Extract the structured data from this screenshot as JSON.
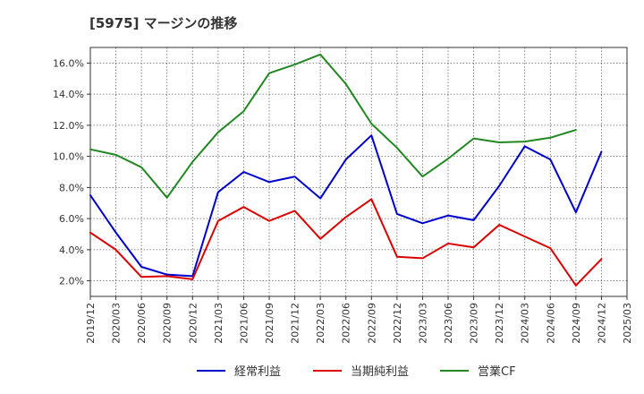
{
  "chart_data": {
    "type": "line",
    "title": "[5975]  マージンの推移",
    "xlabel": "",
    "ylabel": "",
    "x": [
      "2019/12",
      "2020/03",
      "2020/06",
      "2020/09",
      "2020/12",
      "2021/03",
      "2021/06",
      "2021/09",
      "2021/12",
      "2022/03",
      "2022/06",
      "2022/09",
      "2022/12",
      "2023/03",
      "2023/06",
      "2023/09",
      "2023/12",
      "2024/03",
      "2024/06",
      "2024/09",
      "2024/12",
      "2025/03"
    ],
    "ylim": [
      1.0,
      17.0
    ],
    "yticks": [
      2.0,
      4.0,
      6.0,
      8.0,
      10.0,
      12.0,
      14.0,
      16.0
    ],
    "ytick_labels": [
      "2.0%",
      "4.0%",
      "6.0%",
      "8.0%",
      "10.0%",
      "12.0%",
      "14.0%",
      "16.0%"
    ],
    "grid": true,
    "legend_position": "bottom",
    "series": [
      {
        "name": "経常利益",
        "color": "#0000cc",
        "values": [
          7.5,
          5.1,
          2.9,
          2.4,
          2.3,
          7.7,
          9.0,
          8.35,
          8.7,
          7.3,
          9.8,
          11.35,
          6.3,
          5.7,
          6.2,
          5.9,
          8.1,
          10.65,
          9.8,
          6.4,
          10.3,
          null
        ]
      },
      {
        "name": "当期純利益",
        "color": "#dd0000",
        "values": [
          5.1,
          4.0,
          2.25,
          2.3,
          2.1,
          5.85,
          6.75,
          5.85,
          6.5,
          4.7,
          6.1,
          7.25,
          3.55,
          3.45,
          4.4,
          4.15,
          5.6,
          4.85,
          4.1,
          1.7,
          3.4,
          null
        ]
      },
      {
        "name": "営業CF",
        "color": "#228822",
        "values": [
          10.45,
          10.1,
          9.3,
          7.35,
          9.65,
          11.55,
          12.9,
          15.35,
          15.9,
          16.55,
          14.65,
          12.1,
          10.55,
          8.7,
          9.85,
          11.15,
          10.9,
          10.95,
          11.2,
          11.7,
          null,
          null
        ]
      }
    ]
  }
}
